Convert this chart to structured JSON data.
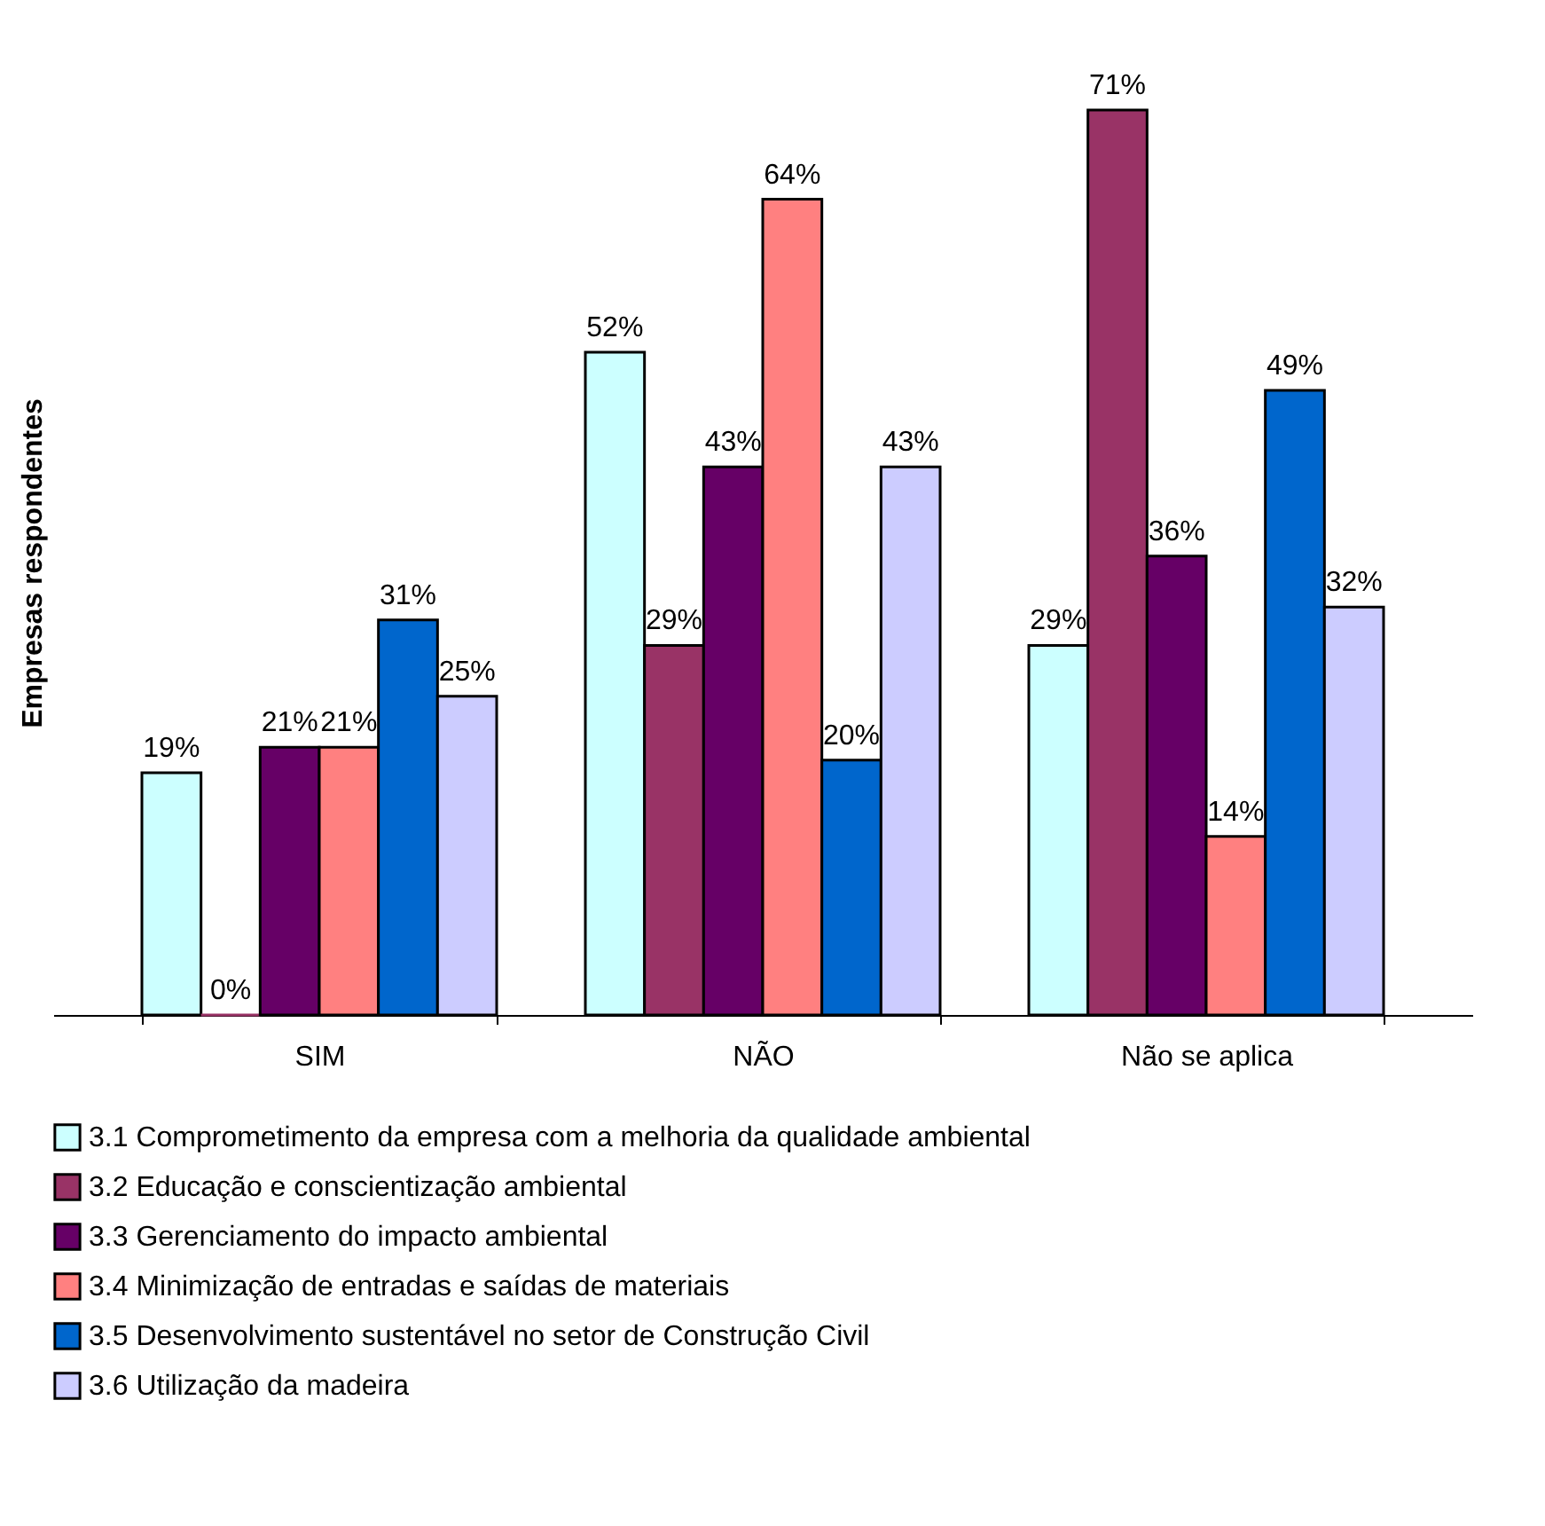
{
  "chart_data": {
    "type": "bar",
    "ylabel": "Empresas respondentes",
    "categories": [
      "SIM",
      "NÃO",
      "Não se aplica"
    ],
    "series": [
      {
        "name": "3.1 Comprometimento da empresa com a melhoria da qualidade ambiental",
        "color": "#ccffff",
        "values": [
          19,
          52,
          29
        ],
        "value_labels": [
          "19%",
          "52%",
          "29%"
        ]
      },
      {
        "name": "3.2 Educação e conscientização ambiental",
        "color": "#993366",
        "values": [
          0,
          29,
          71
        ],
        "value_labels": [
          "0%",
          "29%",
          "71%"
        ]
      },
      {
        "name": "3.3 Gerenciamento do impacto ambiental",
        "color": "#660066",
        "values": [
          21,
          43,
          36
        ],
        "value_labels": [
          "21%",
          "43%",
          "36%"
        ]
      },
      {
        "name": "3.4 Minimização de entradas e saídas de materiais",
        "color": "#ff8080",
        "values": [
          21,
          64,
          14
        ],
        "value_labels": [
          "21%",
          "64%",
          "14%"
        ]
      },
      {
        "name": "3.5 Desenvolvimento sustentável no setor de Construção Civil",
        "color": "#0066cc",
        "values": [
          31,
          20,
          49
        ],
        "value_labels": [
          "31%",
          "20%",
          "49%"
        ]
      },
      {
        "name": "3.6 Utilização da madeira",
        "color": "#ccccff",
        "values": [
          25,
          43,
          32
        ],
        "value_labels": [
          "25%",
          "43%",
          "32%"
        ]
      }
    ],
    "legend": "bottom",
    "grid": false
  }
}
